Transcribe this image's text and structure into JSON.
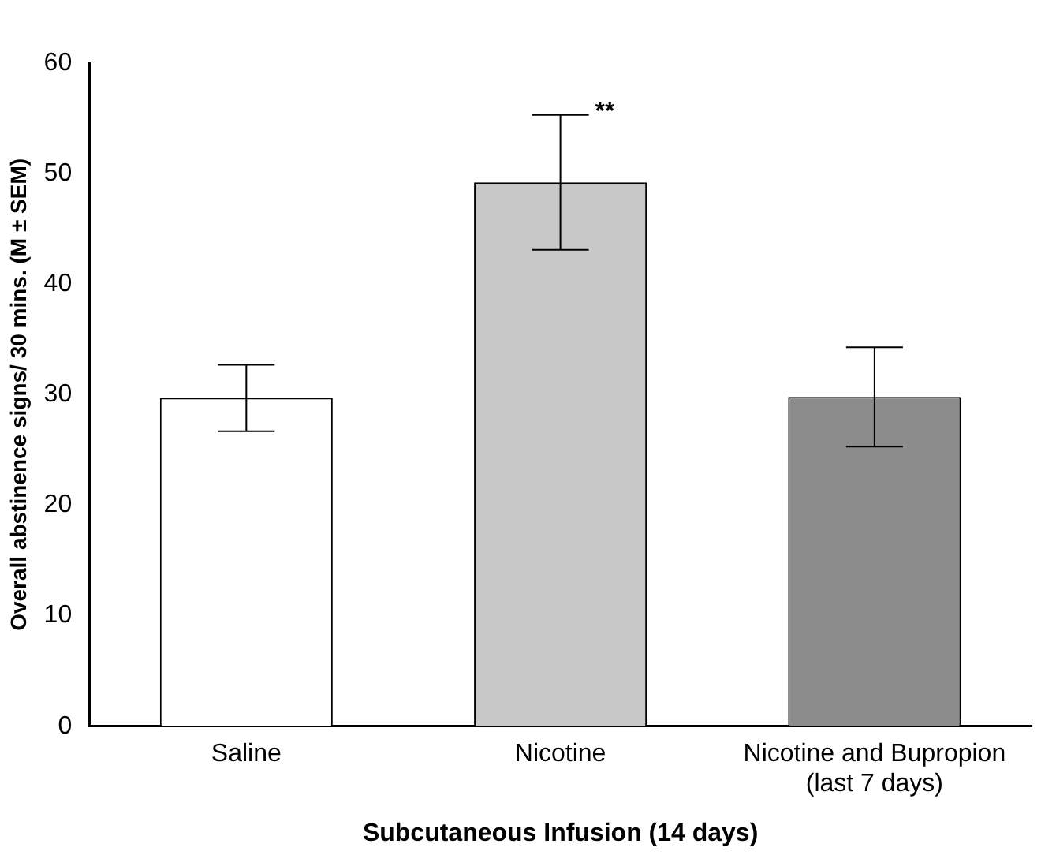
{
  "chart_data": {
    "type": "bar",
    "xlabel": "Subcutaneous Infusion (14 days)",
    "ylabel": "Overall abstinence signs/ 30 mins. (M ± SEM)",
    "categories": [
      "Saline",
      "Nicotine",
      "Nicotine and Bupropion\n(last 7 days)"
    ],
    "values": [
      29.7,
      49.2,
      29.8
    ],
    "colors": [
      "#ffffff",
      "#c8c8c8",
      "#8c8c8c"
    ],
    "errors": [
      [
        26.7,
        32.7
      ],
      [
        43.1,
        55.3
      ],
      [
        25.3,
        34.3
      ]
    ],
    "ylim": [
      0,
      60
    ],
    "yticks": [
      0,
      10,
      20,
      30,
      40,
      50,
      60
    ],
    "grid": false,
    "legend": false,
    "annotations": [
      {
        "text": "**",
        "x": "Nicotine",
        "y": 55.3
      }
    ]
  }
}
